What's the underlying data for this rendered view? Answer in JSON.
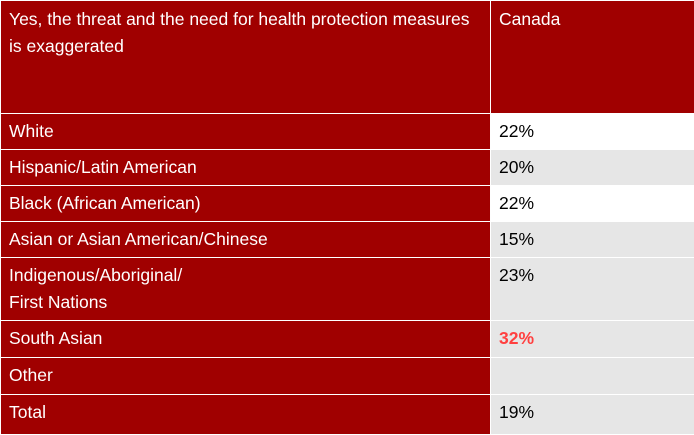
{
  "table": {
    "header": {
      "question": "Yes, the threat and the need for health protection measures is exaggerated",
      "column": "Canada"
    },
    "rows": [
      {
        "label": "White",
        "value": "22%"
      },
      {
        "label": "Hispanic/Latin American",
        "value": "20%"
      },
      {
        "label": "Black (African American)",
        "value": "22%"
      },
      {
        "label": "Asian or Asian American/Chinese",
        "value": "15%"
      },
      {
        "label_line1": "Indigenous/Aboriginal/",
        "label_line2": "First Nations",
        "value": "23%"
      },
      {
        "label": "South Asian",
        "value": "32%"
      },
      {
        "label": "Other",
        "value": ""
      },
      {
        "label": "Total",
        "value": "19%"
      }
    ],
    "colors": {
      "label_bg": "#a00000",
      "highlight": "#ff4040",
      "grey_cell": "#e6e6e6"
    }
  }
}
